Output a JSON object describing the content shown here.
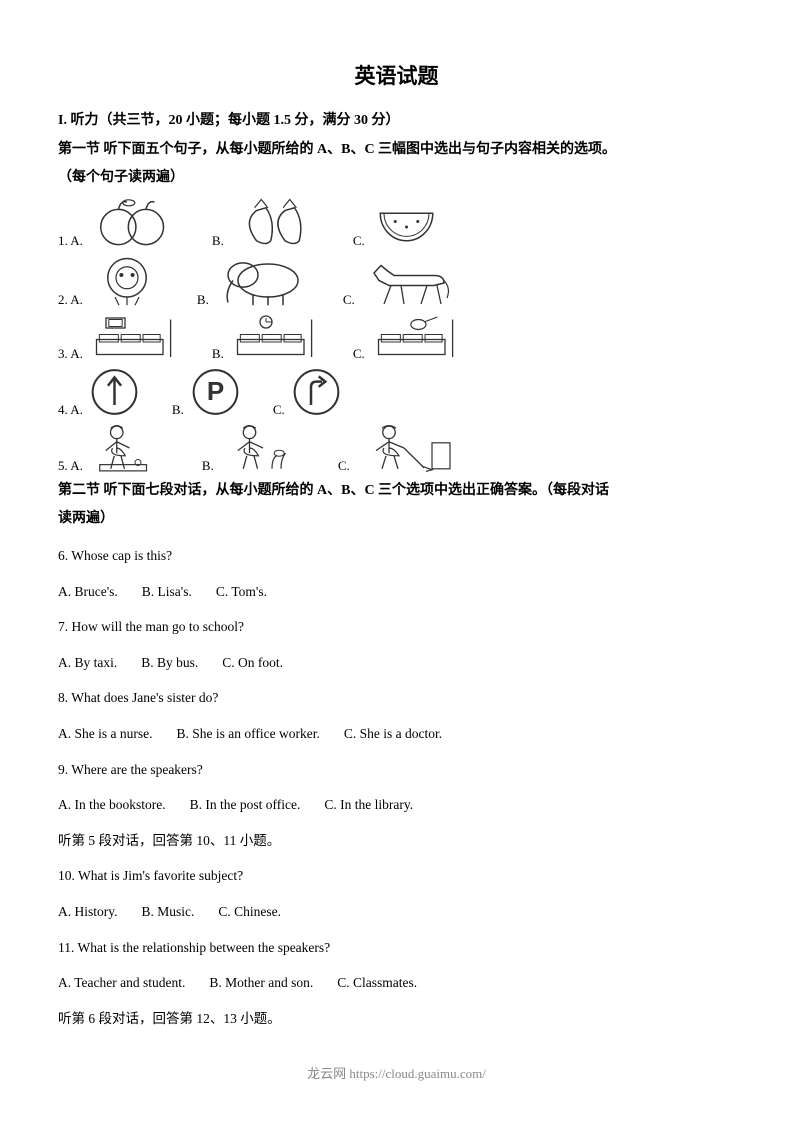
{
  "title": "英语试题",
  "section1_header": "I. 听力（共三节，20 小题；每小题 1.5 分，满分 30 分）",
  "part1_line1": "第一节    听下面五个句子，从每小题所给的 A、B、C 三幅图中选出与句子内容相关的选项。",
  "part1_line2": "（每个句子读两遍）",
  "imageRows": [
    {
      "num": "1",
      "labels": [
        "A.",
        "B.",
        "C."
      ],
      "icons": [
        "apples",
        "strawberries",
        "watermelon"
      ],
      "widths": [
        95,
        95,
        75
      ],
      "heights": [
        55,
        55,
        55
      ]
    },
    {
      "num": "2",
      "labels": [
        "A.",
        "B.",
        "C."
      ],
      "icons": [
        "lion",
        "elephant",
        "horse"
      ],
      "widths": [
        80,
        100,
        100
      ],
      "heights": [
        55,
        55,
        50
      ]
    },
    {
      "num": "3",
      "labels": [
        "A.",
        "B.",
        "C."
      ],
      "icons": [
        "sofa-tv",
        "sofa-clock",
        "sofa-guitar"
      ],
      "widths": [
        95,
        95,
        95
      ],
      "heights": [
        50,
        50,
        50
      ]
    },
    {
      "num": "4",
      "labels": [
        "A.",
        "B.",
        "C."
      ],
      "icons": [
        "sign-up",
        "sign-p",
        "sign-right"
      ],
      "widths": [
        55,
        55,
        55
      ],
      "heights": [
        52,
        52,
        52
      ]
    },
    {
      "num": "5",
      "labels": [
        "A.",
        "B.",
        "C."
      ],
      "icons": [
        "girl-garden",
        "girl-plant",
        "girl-clean"
      ],
      "widths": [
        85,
        90,
        100
      ],
      "heights": [
        52,
        52,
        52
      ]
    }
  ],
  "part2_line1": "第二节    听下面七段对话，从每小题所给的 A、B、C 三个选项中选出正确答案。（每段对话",
  "part2_line2": "读两遍）",
  "questions": [
    {
      "q": "6. Whose cap is this?",
      "opts": [
        "A. Bruce's.",
        "B. Lisa's.",
        "C. Tom's."
      ]
    },
    {
      "q": "7. How will the man go to school?",
      "opts": [
        "A. By taxi.",
        "B. By bus.",
        "C. On foot."
      ]
    },
    {
      "q": "8. What does Jane's sister do?",
      "opts": [
        "A. She is a nurse.",
        "B. She is an office worker.",
        "C. She is a doctor."
      ]
    },
    {
      "q": "9. Where are the speakers?",
      "opts": [
        "A. In the bookstore.",
        "B. In the post office.",
        "C. In the library."
      ]
    }
  ],
  "note5": "听第 5 段对话，回答第 10、11 小题。",
  "questions2": [
    {
      "q": "10. What is Jim's favorite subject?",
      "opts": [
        "A. History.",
        "B. Music.",
        "C. Chinese."
      ]
    },
    {
      "q": "11. What is the relationship between the speakers?",
      "opts": [
        "A. Teacher and student.",
        "B. Mother and son.",
        "C. Classmates."
      ]
    }
  ],
  "note6": "听第 6 段对话，回答第 12、13 小题。",
  "footer": "龙云网 https://cloud.guaimu.com/",
  "colors": {
    "text": "#000000",
    "footer": "#888888",
    "bg": "#ffffff",
    "stroke": "#333333"
  }
}
